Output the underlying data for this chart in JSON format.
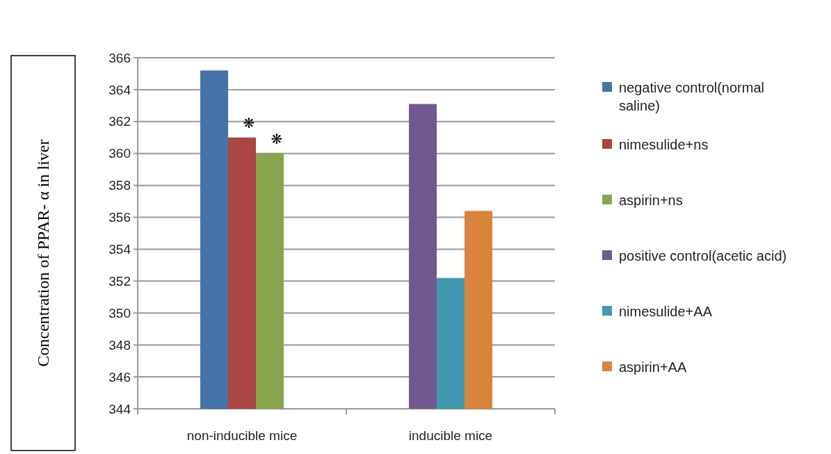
{
  "chart_data": {
    "type": "bar",
    "ylabel": "Concentration of PPAR- α in liver",
    "categories": [
      "non-inducible mice",
      "inducible mice"
    ],
    "series": [
      {
        "name": "negative control(normal saline)",
        "color": "#4572a7",
        "values": [
          365.2,
          null
        ]
      },
      {
        "name": "nimesulide+ns",
        "color": "#aa4643",
        "values": [
          361,
          null
        ],
        "value_labels": [
          "❋",
          null
        ]
      },
      {
        "name": "aspirin+ns",
        "color": "#89a54e",
        "values": [
          360,
          null
        ],
        "value_labels": [
          "❋",
          null
        ]
      },
      {
        "name": "positive control(acetic acid)",
        "color": "#71588f",
        "values": [
          null,
          363.1
        ]
      },
      {
        "name": "nimesulide+AA",
        "color": "#4198af",
        "values": [
          null,
          352.2
        ]
      },
      {
        "name": "aspirin+AA",
        "color": "#db843d",
        "values": [
          null,
          356.4
        ]
      }
    ],
    "ylim": [
      344,
      366
    ],
    "yticks": [
      344,
      346,
      348,
      350,
      352,
      354,
      356,
      358,
      360,
      362,
      364,
      366
    ],
    "grid": "y",
    "legend": "right"
  }
}
